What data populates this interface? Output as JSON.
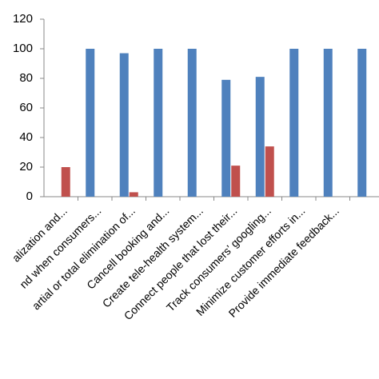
{
  "chart_data": {
    "type": "bar",
    "categories": [
      "alization and...",
      "nd when consumers...",
      "artial or total elimination of...",
      "Cancell booking and...",
      "Create  tele-health system...",
      "Connect people that lost their...",
      "Track consumers’ googling...",
      "Minimize customer efforts in...",
      "Provide immediate feedback...",
      null
    ],
    "series": [
      {
        "color": "#4f81bd",
        "values": [
          0,
          100,
          97,
          100,
          100,
          79,
          81,
          100,
          100,
          100
        ]
      },
      {
        "color": "#c0504d",
        "values": [
          20,
          0,
          3,
          0,
          0,
          21,
          34,
          0,
          0,
          0
        ]
      }
    ],
    "ylim": [
      0,
      120
    ],
    "yticks": [
      0,
      20,
      40,
      60,
      80,
      100,
      120
    ],
    "grid": false
  }
}
